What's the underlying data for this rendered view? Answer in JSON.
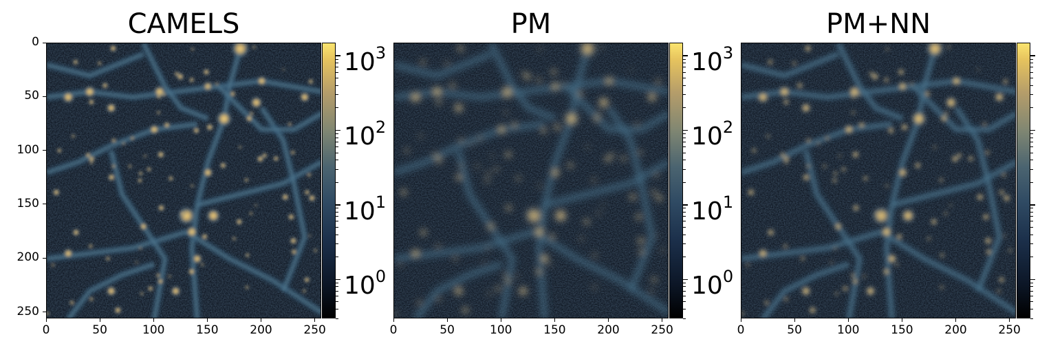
{
  "panels": [
    {
      "title": "CAMELS",
      "seed": 11,
      "blur": 1.6,
      "brightness": 1.0,
      "show_yticks": true
    },
    {
      "title": "PM",
      "seed": 11,
      "blur": 3.2,
      "brightness": 0.92,
      "show_yticks": false
    },
    {
      "title": "PM+NN",
      "seed": 11,
      "blur": 2.1,
      "brightness": 0.97,
      "show_yticks": false
    }
  ],
  "axes": {
    "x_ticks": [
      "0",
      "50",
      "100",
      "150",
      "200",
      "250"
    ],
    "y_ticks": [
      "0",
      "50",
      "100",
      "150",
      "200",
      "250"
    ],
    "range": [
      0,
      256
    ]
  },
  "colorbar": {
    "scale": "log",
    "min": 0.3,
    "max": 1500,
    "tick_bases": [
      "10",
      "10",
      "10",
      "10"
    ],
    "tick_exponents": [
      "0",
      "1",
      "2",
      "3"
    ],
    "colors": [
      "#000000",
      "#1b2f4a",
      "#4b6470",
      "#b59d6a",
      "#fbe46f"
    ]
  }
}
